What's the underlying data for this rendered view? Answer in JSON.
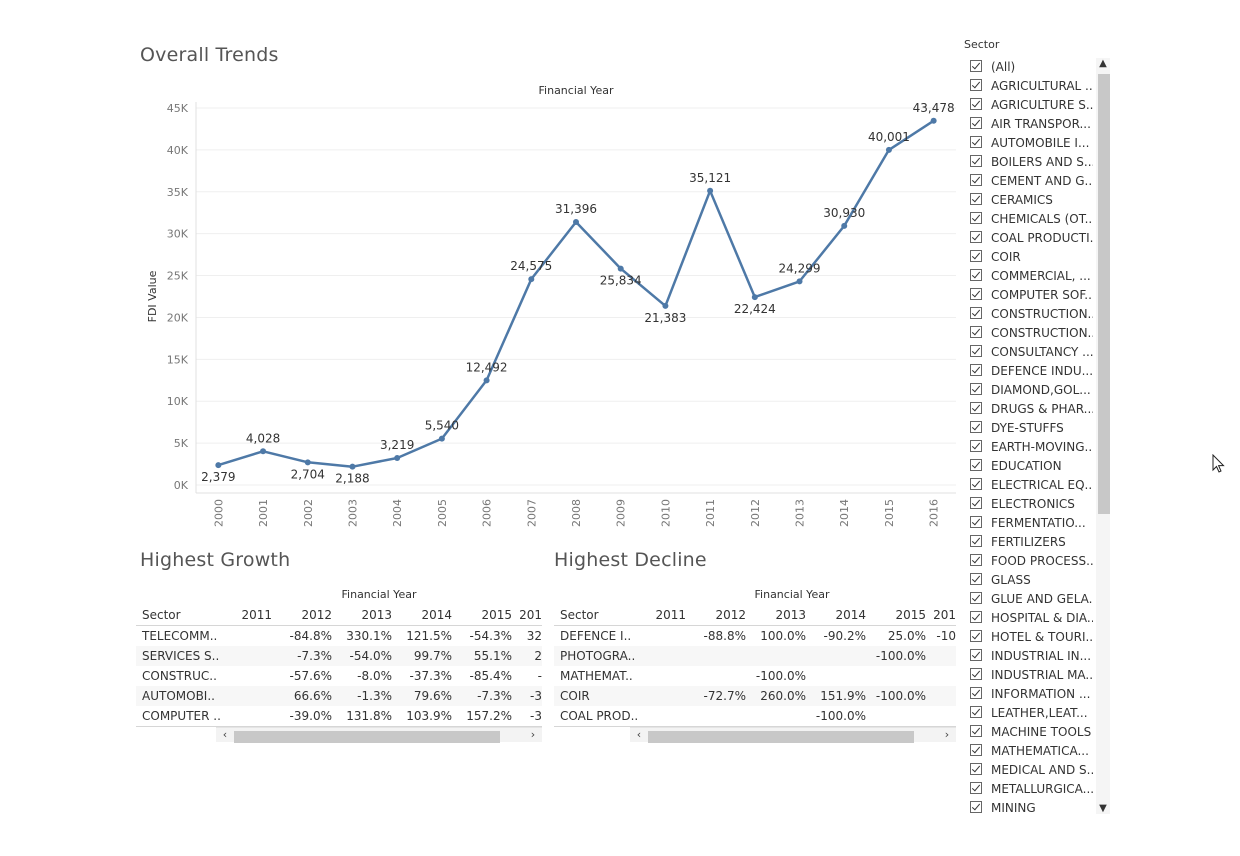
{
  "overall": {
    "title": "Overall Trends"
  },
  "chart_data": {
    "type": "line",
    "title": "Financial Year",
    "xlabel": "",
    "ylabel": "FDI Value",
    "x": [
      "2000",
      "2001",
      "2002",
      "2003",
      "2004",
      "2005",
      "2006",
      "2007",
      "2008",
      "2009",
      "2010",
      "2011",
      "2012",
      "2013",
      "2014",
      "2015",
      "2016"
    ],
    "values": [
      2379,
      4028,
      2704,
      2188,
      3219,
      5540,
      12492,
      24575,
      31396,
      25834,
      21383,
      35121,
      22424,
      24299,
      30930,
      40001,
      43478
    ],
    "data_labels": [
      "2,379",
      "4,028",
      "2,704",
      "2,188",
      "3,219",
      "5,540",
      "12,492",
      "24,575",
      "31,396",
      "25,834",
      "21,383",
      "35,121",
      "22,424",
      "24,299",
      "30,930",
      "40,001",
      "43,478"
    ],
    "ylim": [
      0,
      45000
    ],
    "yticks": [
      0,
      5000,
      10000,
      15000,
      20000,
      25000,
      30000,
      35000,
      40000,
      45000
    ],
    "ytick_labels": [
      "0K",
      "5K",
      "10K",
      "15K",
      "20K",
      "25K",
      "30K",
      "35K",
      "40K",
      "45K"
    ],
    "grid": true,
    "color": "#4e79a7"
  },
  "growth": {
    "title": "Highest Growth",
    "caption": "Financial Year",
    "sector_header": "Sector",
    "years": [
      "2011",
      "2012",
      "2013",
      "2014",
      "2015",
      "201"
    ],
    "rows": [
      {
        "sector": "TELECOMM..",
        "cells": [
          "",
          "-84.8%",
          "330.1%",
          "121.5%",
          "-54.3%",
          "32"
        ]
      },
      {
        "sector": "SERVICES S..",
        "cells": [
          "",
          "-7.3%",
          "-54.0%",
          "99.7%",
          "55.1%",
          "2"
        ]
      },
      {
        "sector": "CONSTRUC..",
        "cells": [
          "",
          "-57.6%",
          "-8.0%",
          "-37.3%",
          "-85.4%",
          "-"
        ]
      },
      {
        "sector": "AUTOMOBI..",
        "cells": [
          "",
          "66.6%",
          "-1.3%",
          "79.6%",
          "-7.3%",
          "-3"
        ]
      },
      {
        "sector": "COMPUTER ..",
        "cells": [
          "",
          "-39.0%",
          "131.8%",
          "103.9%",
          "157.2%",
          "-3"
        ]
      }
    ]
  },
  "decline": {
    "title": "Highest Decline",
    "caption": "Financial Year",
    "sector_header": "Sector",
    "years": [
      "2011",
      "2012",
      "2013",
      "2014",
      "2015",
      "201"
    ],
    "rows": [
      {
        "sector": "DEFENCE I..",
        "cells": [
          "",
          "-88.8%",
          "100.0%",
          "-90.2%",
          "25.0%",
          "-10"
        ]
      },
      {
        "sector": "PHOTOGRA..",
        "cells": [
          "",
          "",
          "",
          "",
          "-100.0%",
          ""
        ]
      },
      {
        "sector": "MATHEMAT..",
        "cells": [
          "",
          "",
          "-100.0%",
          "",
          "",
          ""
        ]
      },
      {
        "sector": "COIR",
        "cells": [
          "",
          "-72.7%",
          "260.0%",
          "151.9%",
          "-100.0%",
          ""
        ]
      },
      {
        "sector": "COAL PROD..",
        "cells": [
          "",
          "",
          "",
          "-100.0%",
          "",
          ""
        ]
      }
    ]
  },
  "filter": {
    "title": "Sector",
    "items": [
      "(All)",
      "AGRICULTURAL ...",
      "AGRICULTURE S...",
      "AIR TRANSPOR...",
      "AUTOMOBILE I...",
      "BOILERS AND S...",
      "CEMENT AND G...",
      "CERAMICS",
      "CHEMICALS (OT...",
      "COAL PRODUCTI...",
      "COIR",
      "COMMERCIAL, ...",
      "COMPUTER SOF...",
      "CONSTRUCTION...",
      "CONSTRUCTION...",
      "CONSULTANCY ...",
      "DEFENCE INDU...",
      "DIAMOND,GOL...",
      "DRUGS & PHAR...",
      "DYE-STUFFS",
      "EARTH-MOVING...",
      "EDUCATION",
      "ELECTRICAL EQ...",
      "ELECTRONICS",
      "FERMENTATIO...",
      "FERTILIZERS",
      "FOOD PROCESS...",
      "GLASS",
      "GLUE AND GELA...",
      "HOSPITAL & DIA...",
      "HOTEL & TOURI...",
      "INDUSTRIAL IN...",
      "INDUSTRIAL MA...",
      "INFORMATION ...",
      "LEATHER,LEAT...",
      "MACHINE TOOLS",
      "MATHEMATICA...",
      "MEDICAL AND S...",
      "METALLURGICA...",
      "MINING"
    ]
  }
}
